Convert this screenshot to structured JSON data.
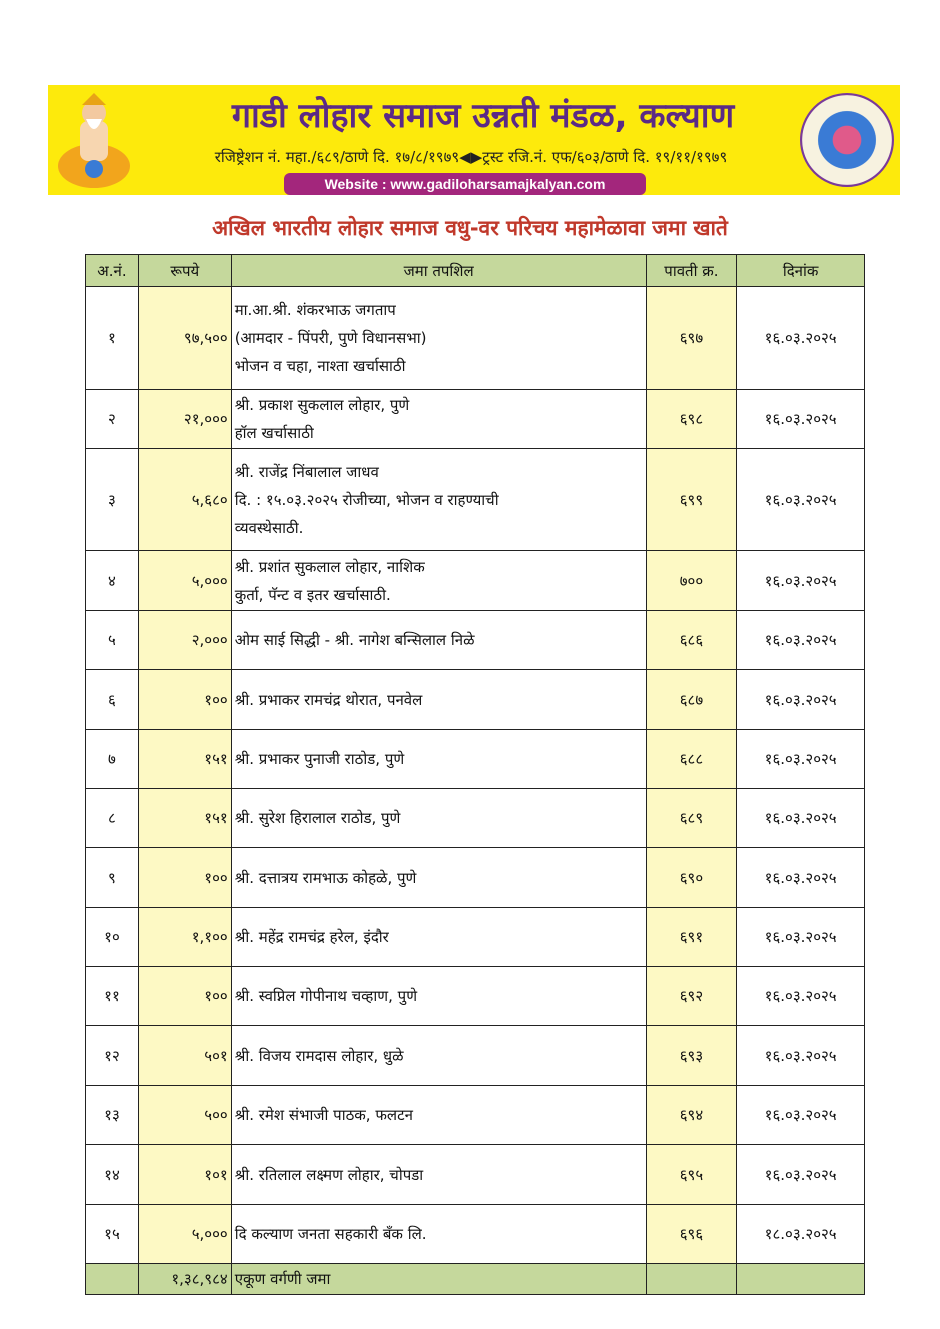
{
  "header": {
    "org_name": "गाडी लोहार समाज उन्नती मंडळ, कल्याण",
    "registration": "रजिष्ट्रेशन नं. महा./६८९/ठाणे दि. १७/८/१९७९◀▶ट्रस्ट रजि.नं. एफ/६०३/ठाणे दि. १९/११/१९७९",
    "website": "Website : www.gadiloharsamajkalyan.com",
    "banner_color": "#fdea0c",
    "title_color": "#5b2a86"
  },
  "subtitle": "अखिल भारतीय लोहार समाज वधु-वर परिचय महामेळावा जमा खाते",
  "table": {
    "columns": [
      "अ.नं.",
      "रूपये",
      "जमा तपशिल",
      "पावती क्र.",
      "दिनांक"
    ],
    "rows": [
      {
        "no": "१",
        "amount": "९७,५००",
        "details": [
          "मा.आ.श्री. शंकरभाऊ जगताप",
          "(आमदार - पिंपरी, पुणे विधानसभा)",
          "भोजन व चहा, नाश्ता खर्चासाठी"
        ],
        "receipt": "६९७",
        "date": "१६.०३.२०२५"
      },
      {
        "no": "२",
        "amount": "२१,०००",
        "details": [
          "श्री. प्रकाश सुकलाल लोहार, पुणे",
          "हॉल खर्चासाठी"
        ],
        "receipt": "६९८",
        "date": "१६.०३.२०२५"
      },
      {
        "no": "३",
        "amount": "५,६८०",
        "details": [
          "श्री. राजेंद्र निंबालाल जाधव",
          "दि. : १५.०३.२०२५ रोजीच्या, भोजन व राहण्याची",
          "व्यवस्थेसाठी."
        ],
        "receipt": "६९९",
        "date": "१६.०३.२०२५"
      },
      {
        "no": "४",
        "amount": "५,०००",
        "details": [
          "श्री. प्रशांत सुकलाल लोहार, नाशिक",
          "कुर्ता, पॅन्ट व इतर खर्चासाठी."
        ],
        "receipt": "७००",
        "date": "१६.०३.२०२५"
      },
      {
        "no": "५",
        "amount": "२,०००",
        "details": [
          "ओम साई सिद्धी - श्री. नागेश बन्सिलाल निळे"
        ],
        "receipt": "६८६",
        "date": "१६.०३.२०२५"
      },
      {
        "no": "६",
        "amount": "१००",
        "details": [
          "श्री. प्रभाकर रामचंद्र थोरात, पनवेल"
        ],
        "receipt": "६८७",
        "date": "१६.०३.२०२५"
      },
      {
        "no": "७",
        "amount": "१५१",
        "details": [
          "श्री. प्रभाकर पुनाजी राठोड, पुणे"
        ],
        "receipt": "६८८",
        "date": "१६.०३.२०२५"
      },
      {
        "no": "८",
        "amount": "१५१",
        "details": [
          "श्री. सुरेश हिरालाल राठोड, पुणे"
        ],
        "receipt": "६८९",
        "date": "१६.०३.२०२५"
      },
      {
        "no": "९",
        "amount": "१००",
        "details": [
          "श्री. दत्तात्रय रामभाऊ कोहळे, पुणे"
        ],
        "receipt": "६९०",
        "date": "१६.०३.२०२५"
      },
      {
        "no": "१०",
        "amount": "१,१००",
        "details": [
          "श्री. महेंद्र रामचंद्र हरेल, इंदौर"
        ],
        "receipt": "६९१",
        "date": "१६.०३.२०२५"
      },
      {
        "no": "११",
        "amount": "१००",
        "details": [
          "श्री. स्वप्निल गोपीनाथ चव्हाण, पुणे"
        ],
        "receipt": "६९२",
        "date": "१६.०३.२०२५"
      },
      {
        "no": "१२",
        "amount": "५०१",
        "details": [
          "श्री. विजय रामदास लोहार, धुळे"
        ],
        "receipt": "६९३",
        "date": "१६.०३.२०२५"
      },
      {
        "no": "१३",
        "amount": "५००",
        "details": [
          "श्री. रमेश संभाजी पाठक, फलटन"
        ],
        "receipt": "६९४",
        "date": "१६.०३.२०२५"
      },
      {
        "no": "१४",
        "amount": "१०१",
        "details": [
          "श्री. रतिलाल लक्ष्मण लोहार, चोपडा"
        ],
        "receipt": "६९५",
        "date": "१६.०३.२०२५"
      },
      {
        "no": "१५",
        "amount": "५,०००",
        "details": [
          "दि कल्याण जनता सहकारी बँक लि."
        ],
        "receipt": "६९६",
        "date": "१८.०३.२०२५"
      }
    ],
    "total": {
      "amount": "१,३८,९८४",
      "label": "एकूण वर्गणी जमा"
    }
  }
}
